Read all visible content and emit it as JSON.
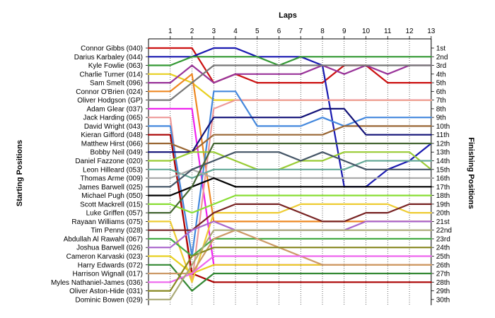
{
  "chart_data": {
    "type": "line",
    "title": "Laps",
    "ylabel_left": "Starting Positions",
    "ylabel_right": "Finishing Positions",
    "laps": [
      1,
      2,
      3,
      4,
      5,
      6,
      7,
      8,
      9,
      10,
      11,
      12,
      13
    ],
    "finishing_labels": [
      "1st",
      "2nd",
      "3rd",
      "4th",
      "5th",
      "6th",
      "7th",
      "8th",
      "9th",
      "10th",
      "11th",
      "12th",
      "13th",
      "14th",
      "15th",
      "16th",
      "17th",
      "18th",
      "19th",
      "20th",
      "21st",
      "22nd",
      "23rd",
      "24th",
      "25th",
      "26th",
      "27th",
      "28th",
      "29th",
      "30th"
    ],
    "grid": "vertical",
    "series": [
      {
        "name": "Connor Gibbs (040)",
        "color": "#cc1111",
        "positions": [
          1,
          1,
          5,
          4,
          5,
          5,
          5,
          5,
          3,
          3,
          5,
          5,
          5
        ]
      },
      {
        "name": "Darius Karbaley (044)",
        "color": "#1a1ab0",
        "positions": [
          2,
          2,
          1,
          1,
          2,
          2,
          2,
          3,
          17,
          17,
          15,
          14,
          12
        ]
      },
      {
        "name": "Kyle Fowlie (063)",
        "color": "#339933",
        "positions": [
          3,
          2,
          2,
          2,
          2,
          3,
          2,
          2,
          2,
          2,
          2,
          2,
          2
        ]
      },
      {
        "name": "Charlie Turner (014)",
        "color": "#e8d020",
        "positions": [
          4,
          5,
          7,
          7,
          7,
          7,
          7,
          7,
          7,
          7,
          7,
          7,
          7
        ]
      },
      {
        "name": "Sam Smelt (096)",
        "color": "#993399",
        "positions": [
          5,
          3,
          5,
          4,
          4,
          4,
          4,
          3,
          4,
          3,
          4,
          3,
          3
        ]
      },
      {
        "name": "Connor O'Brien (024)",
        "color": "#ee8822",
        "positions": [
          6,
          4,
          21,
          21,
          21,
          21,
          21,
          21,
          21,
          21,
          21,
          21,
          21
        ]
      },
      {
        "name": "Oliver Hodgson (GP)",
        "color": "#777777",
        "positions": [
          7,
          5,
          3,
          3,
          3,
          3,
          3,
          3,
          3,
          3,
          3,
          3,
          3
        ]
      },
      {
        "name": "Adam Glear (037)",
        "color": "#ee22ee",
        "positions": [
          8,
          8,
          26,
          26,
          26,
          26,
          26,
          26,
          26,
          26,
          26,
          26,
          26
        ]
      },
      {
        "name": "Jack Harding (065)",
        "color": "#ee9999",
        "positions": [
          9,
          28,
          8,
          7,
          7,
          7,
          7,
          7,
          7,
          7,
          7,
          7,
          7
        ]
      },
      {
        "name": "David Wright (043)",
        "color": "#4488dd",
        "positions": [
          10,
          25,
          6,
          6,
          10,
          10,
          10,
          9,
          10,
          9,
          9,
          9,
          9
        ]
      },
      {
        "name": "Kieran Gifford (048)",
        "color": "#aa0000",
        "positions": [
          11,
          27,
          28,
          28,
          28,
          28,
          28,
          28,
          28,
          28,
          28,
          28,
          28
        ]
      },
      {
        "name": "Matthew Hirst (066)",
        "color": "#996633",
        "positions": [
          12,
          13,
          11,
          11,
          11,
          11,
          11,
          11,
          10,
          10,
          10,
          10,
          10
        ]
      },
      {
        "name": "Bobby Neil (049)",
        "color": "#111177",
        "positions": [
          13,
          13,
          9,
          9,
          9,
          9,
          9,
          8,
          8,
          11,
          11,
          11,
          11
        ]
      },
      {
        "name": "Daniel Fazzone (020)",
        "color": "#99cc33",
        "positions": [
          14,
          13,
          13,
          14,
          15,
          15,
          14,
          14,
          13,
          13,
          13,
          13,
          15
        ]
      },
      {
        "name": "Leon Hilleard (053)",
        "color": "#66aa99",
        "positions": [
          15,
          16,
          15,
          15,
          15,
          15,
          15,
          15,
          15,
          14,
          14,
          14,
          14
        ]
      },
      {
        "name": "Thomas Arme (009)",
        "color": "#aaaaaa",
        "positions": [
          16,
          15,
          16,
          16,
          16,
          16,
          16,
          16,
          16,
          16,
          16,
          16,
          16
        ]
      },
      {
        "name": "James Barwell (025)",
        "color": "#445566",
        "positions": [
          17,
          15,
          14,
          13,
          13,
          13,
          14,
          13,
          14,
          15,
          15,
          15,
          15
        ]
      },
      {
        "name": "Michael Pugh (050)",
        "color": "#000000",
        "positions": [
          18,
          17,
          16,
          17,
          17,
          17,
          17,
          17,
          17,
          17,
          17,
          17,
          17
        ]
      },
      {
        "name": "Scott Mackrell (015)",
        "color": "#88dd33",
        "positions": [
          19,
          20,
          19,
          18,
          18,
          18,
          18,
          18,
          18,
          18,
          18,
          18,
          18
        ]
      },
      {
        "name": "Luke Griffen (057)",
        "color": "#446633",
        "positions": [
          20,
          17,
          12,
          12,
          12,
          12,
          12,
          12,
          12,
          12,
          12,
          12,
          12
        ]
      },
      {
        "name": "Rayaan Williams (075)",
        "color": "#eecc33",
        "positions": [
          21,
          28,
          20,
          20,
          20,
          20,
          19,
          19,
          19,
          19,
          19,
          20,
          20
        ]
      },
      {
        "name": "Tim Penny (028)",
        "color": "#772222",
        "positions": [
          22,
          22,
          20,
          19,
          19,
          19,
          20,
          21,
          21,
          20,
          20,
          19,
          19
        ]
      },
      {
        "name": "Abdullah Al Rawahi (067)",
        "color": "#44aa44",
        "positions": [
          23,
          25,
          23,
          23,
          23,
          23,
          23,
          23,
          23,
          23,
          23,
          23,
          23
        ]
      },
      {
        "name": "Joshua Barwell (026)",
        "color": "#aa66cc",
        "positions": [
          24,
          22,
          21,
          22,
          22,
          22,
          22,
          22,
          22,
          21,
          21,
          21,
          21
        ]
      },
      {
        "name": "Cameron Karvaski (023)",
        "color": "#e8d020",
        "positions": [
          25,
          27,
          26,
          26,
          26,
          26,
          26,
          26,
          26,
          26,
          26,
          26,
          26
        ]
      },
      {
        "name": "Harry Edwards (072)",
        "color": "#338833",
        "positions": [
          26,
          29,
          27,
          27,
          27,
          27,
          27,
          27,
          27,
          27,
          27,
          27,
          27
        ]
      },
      {
        "name": "Harrison Wignall (017)",
        "color": "#cc9966",
        "positions": [
          27,
          27,
          23,
          22,
          23,
          24,
          25,
          26,
          26,
          26,
          26,
          26,
          26
        ]
      },
      {
        "name": "Myles Nathaniel-James (036)",
        "color": "#ee66ee",
        "positions": [
          28,
          27,
          25,
          25,
          25,
          25,
          25,
          25,
          25,
          25,
          25,
          25,
          25
        ]
      },
      {
        "name": "Oliver Aston-Hide (031)",
        "color": "#888822",
        "positions": [
          29,
          25,
          24,
          24,
          24,
          24,
          24,
          24,
          24,
          24,
          24,
          24,
          24
        ]
      },
      {
        "name": "Dominic Bowen (029)",
        "color": "#aaaa77",
        "positions": [
          30,
          26,
          22,
          22,
          22,
          22,
          22,
          22,
          22,
          22,
          22,
          22,
          22
        ]
      }
    ]
  }
}
